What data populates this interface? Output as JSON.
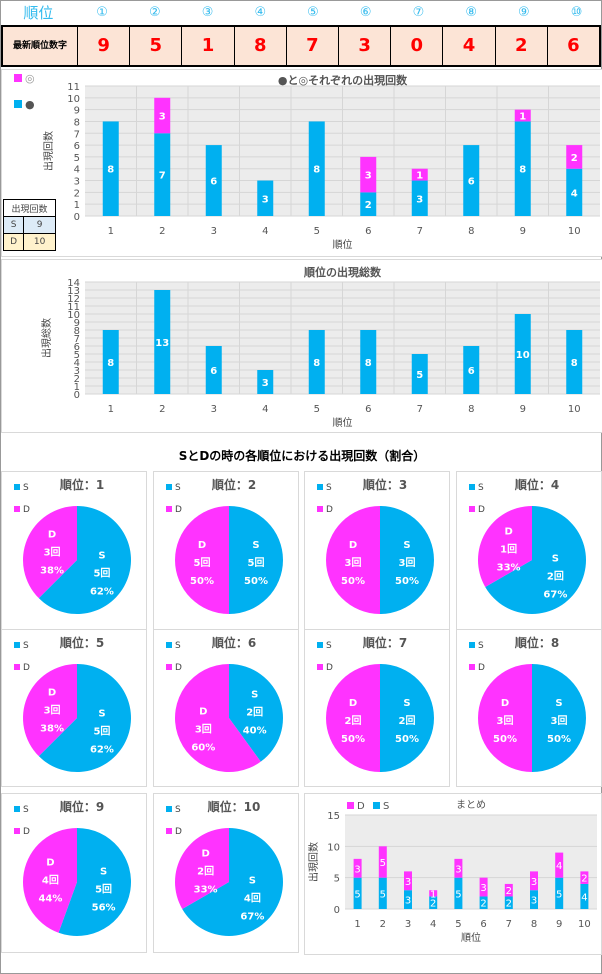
{
  "header": {
    "label": "順位",
    "positions": [
      "①",
      "②",
      "③",
      "④",
      "⑤",
      "⑥",
      "⑦",
      "⑧",
      "⑨",
      "⑩"
    ]
  },
  "latest": {
    "label": "最新順位数字",
    "digits": [
      "9",
      "5",
      "1",
      "8",
      "7",
      "3",
      "0",
      "4",
      "2",
      "6"
    ]
  },
  "count_table": {
    "title": "出現回数",
    "rows": [
      {
        "k": "S",
        "v": "9"
      },
      {
        "k": "D",
        "v": "10"
      }
    ]
  },
  "section_title": "SとDの時の各順位における出現回数（割合）",
  "colors": {
    "blue": "#00b0f0",
    "magenta": "#ff33ff"
  },
  "chart_data": [
    {
      "type": "bar",
      "stacked": true,
      "title": "●と◎それぞれの出現回数",
      "xlabel": "順位",
      "ylabel": "出現回数",
      "ylim": [
        0,
        11
      ],
      "categories": [
        "1",
        "2",
        "3",
        "4",
        "5",
        "6",
        "7",
        "8",
        "9",
        "10"
      ],
      "legend": [
        "◎",
        "●"
      ],
      "series": [
        {
          "name": "●",
          "values": [
            8,
            7,
            6,
            3,
            8,
            2,
            3,
            6,
            8,
            4
          ]
        },
        {
          "name": "◎",
          "values": [
            0,
            3,
            0,
            0,
            0,
            3,
            1,
            0,
            1,
            2
          ]
        }
      ]
    },
    {
      "type": "bar",
      "title": "順位の出現総数",
      "xlabel": "順位",
      "ylabel": "出現総数",
      "ylim": [
        0,
        14
      ],
      "categories": [
        "1",
        "2",
        "3",
        "4",
        "5",
        "6",
        "7",
        "8",
        "9",
        "10"
      ],
      "series": [
        {
          "name": "出現総数",
          "values": [
            8,
            13,
            6,
            3,
            8,
            8,
            5,
            6,
            10,
            8
          ]
        }
      ]
    },
    {
      "type": "pie",
      "titles": [
        "順位：1",
        "順位：2",
        "順位：3",
        "順位：4",
        "順位：5",
        "順位：6",
        "順位：7",
        "順位：8",
        "順位：9",
        "順位：10"
      ],
      "legend": [
        "S",
        "D"
      ],
      "unit": "回",
      "S": [
        5,
        5,
        3,
        2,
        5,
        2,
        2,
        3,
        5,
        4
      ],
      "D": [
        3,
        5,
        3,
        1,
        3,
        3,
        2,
        3,
        4,
        2
      ],
      "S_pct": [
        "62%",
        "50%",
        "50%",
        "67%",
        "62%",
        "40%",
        "50%",
        "50%",
        "56%",
        "67%"
      ],
      "D_pct": [
        "38%",
        "50%",
        "50%",
        "33%",
        "38%",
        "60%",
        "50%",
        "50%",
        "44%",
        "33%"
      ]
    },
    {
      "type": "bar",
      "stacked": true,
      "title": "まとめ",
      "xlabel": "順位",
      "ylabel": "出現回数",
      "ylim": [
        0,
        15
      ],
      "yticks": [
        0,
        5,
        10,
        15
      ],
      "categories": [
        "1",
        "2",
        "3",
        "4",
        "5",
        "6",
        "7",
        "8",
        "9",
        "10"
      ],
      "legend": [
        "D",
        "S"
      ],
      "series": [
        {
          "name": "S",
          "values": [
            5,
            5,
            3,
            2,
            5,
            2,
            2,
            3,
            5,
            4
          ]
        },
        {
          "name": "D",
          "values": [
            3,
            5,
            3,
            1,
            3,
            3,
            2,
            3,
            4,
            2
          ]
        }
      ]
    }
  ]
}
